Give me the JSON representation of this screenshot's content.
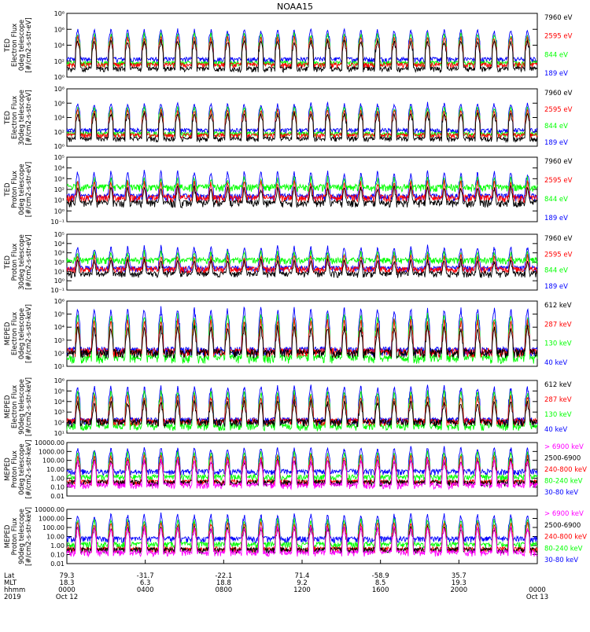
{
  "title": "NOAA15",
  "colors": {
    "black": "#000000",
    "blue": "#0000ff",
    "green": "#00ff00",
    "red": "#ff0000",
    "magenta": "#ff00ff"
  },
  "chart_data": [
    {
      "type": "line",
      "panel": 1,
      "ylabel": [
        "TED",
        "Electron Flux",
        "0deg telescope",
        "[#/cm2-s-str-eV]"
      ],
      "ytick_labels": [
        "10⁰",
        "10²",
        "10⁴",
        "10⁶",
        "10⁸"
      ],
      "ylim": [
        1,
        100000000
      ],
      "yscale": "log",
      "series": [
        {
          "name": "7960 eV",
          "color": "#000000"
        },
        {
          "name": "2595 eV",
          "color": "#ff0000"
        },
        {
          "name": "844 eV",
          "color": "#00ff00"
        },
        {
          "name": "189 eV",
          "color": "#0000ff"
        }
      ],
      "background_levels": {
        "7960 eV": 10,
        "2595 eV": 30,
        "844 eV": 50,
        "189 eV": 150
      },
      "peak_level": 1000000
    },
    {
      "type": "line",
      "panel": 2,
      "ylabel": [
        "TED",
        "Electron Flux",
        "30deg telescope",
        "[#/cm2-s-str-eV]"
      ],
      "ytick_labels": [
        "10⁰",
        "10²",
        "10⁴",
        "10⁶",
        "10⁸"
      ],
      "ylim": [
        1,
        100000000
      ],
      "yscale": "log",
      "series": [
        {
          "name": "7960 eV",
          "color": "#000000"
        },
        {
          "name": "2595 eV",
          "color": "#ff0000"
        },
        {
          "name": "844 eV",
          "color": "#00ff00"
        },
        {
          "name": "189 eV",
          "color": "#0000ff"
        }
      ],
      "background_levels": {
        "7960 eV": 10,
        "2595 eV": 30,
        "844 eV": 50,
        "189 eV": 150
      },
      "peak_level": 1000000
    },
    {
      "type": "line",
      "panel": 3,
      "ylabel": [
        "TED",
        "Proton Flux",
        "0deg telescope",
        "[#/cm2-s-str-eV]"
      ],
      "ytick_labels": [
        "10⁻¹",
        "10⁰",
        "10¹",
        "10²",
        "10³",
        "10⁴",
        "10⁵"
      ],
      "ylim": [
        0.1,
        100000
      ],
      "yscale": "log",
      "series": [
        {
          "name": "7960 eV",
          "color": "#000000"
        },
        {
          "name": "2595 eV",
          "color": "#ff0000"
        },
        {
          "name": "844 eV",
          "color": "#00ff00"
        },
        {
          "name": "189 eV",
          "color": "#0000ff"
        }
      ],
      "background_levels": {
        "7960 eV": 5,
        "2595 eV": 15,
        "844 eV": 150,
        "189 eV": 20
      },
      "peak_level": 5000
    },
    {
      "type": "line",
      "panel": 4,
      "ylabel": [
        "TED",
        "Proton Flux",
        "30deg telescope",
        "[#/cm2-s-str-eV]"
      ],
      "ytick_labels": [
        "10⁻¹",
        "10⁰",
        "10¹",
        "10²",
        "10³",
        "10⁴",
        "10⁵"
      ],
      "ylim": [
        0.1,
        100000
      ],
      "yscale": "log",
      "series": [
        {
          "name": "7960 eV",
          "color": "#000000"
        },
        {
          "name": "2595 eV",
          "color": "#ff0000"
        },
        {
          "name": "844 eV",
          "color": "#00ff00"
        },
        {
          "name": "189 eV",
          "color": "#0000ff"
        }
      ],
      "background_levels": {
        "7960 eV": 5,
        "2595 eV": 15,
        "844 eV": 150,
        "189 eV": 20
      },
      "peak_level": 5000
    },
    {
      "type": "line",
      "panel": 5,
      "ylabel": [
        "MEPED",
        "Electron Flux",
        "0deg telescope",
        "[#/cm2-s-str-keV]"
      ],
      "ytick_labels": [
        "10¹",
        "10²",
        "10³",
        "10⁴",
        "10⁵",
        "10⁶"
      ],
      "ylim": [
        10,
        1000000
      ],
      "yscale": "log",
      "series": [
        {
          "name": "612 keV",
          "color": "#000000"
        },
        {
          "name": "287 keV",
          "color": "#ff0000"
        },
        {
          "name": "130 keV",
          "color": "#00ff00"
        },
        {
          "name": "40 keV",
          "color": "#0000ff"
        }
      ],
      "background_levels": {
        "612 keV": 100,
        "287 keV": 120,
        "130 keV": 40,
        "40 keV": 150
      },
      "peak_level": 300000
    },
    {
      "type": "line",
      "panel": 6,
      "ylabel": [
        "MEPED",
        "Electron Flux",
        "90deg telescope",
        "[#/cm2-s-str-keV]"
      ],
      "ytick_labels": [
        "10¹",
        "10²",
        "10³",
        "10⁴",
        "10⁵",
        "10⁶"
      ],
      "ylim": [
        10,
        1000000
      ],
      "yscale": "log",
      "series": [
        {
          "name": "612 keV",
          "color": "#000000"
        },
        {
          "name": "287 keV",
          "color": "#ff0000"
        },
        {
          "name": "130 keV",
          "color": "#00ff00"
        },
        {
          "name": "40 keV",
          "color": "#0000ff"
        }
      ],
      "background_levels": {
        "612 keV": 100,
        "287 keV": 120,
        "130 keV": 40,
        "40 keV": 150
      },
      "peak_level": 300000
    },
    {
      "type": "line",
      "panel": 7,
      "ylabel": [
        "MEPED",
        "Proton Flux",
        "0deg telescope",
        "[#/cm2-s-str-keV]"
      ],
      "ytick_labels": [
        "0.01",
        "0.10",
        "1.00",
        "10.00",
        "100.00",
        "1000.00",
        "10000.00"
      ],
      "ylim": [
        0.01,
        10000
      ],
      "yscale": "log",
      "series": [
        {
          "name": "> 6900 keV",
          "color": "#ff00ff"
        },
        {
          "name": "2500-6900",
          "color": "#000000"
        },
        {
          "name": "240-800 keV",
          "color": "#ff0000"
        },
        {
          "name": "80-240 keV",
          "color": "#00ff00"
        },
        {
          "name": "30-80 keV",
          "color": "#0000ff"
        }
      ],
      "background_levels": {
        "> 6900 keV": 0.15,
        "2500-6900": 0.3,
        "240-800 keV": 0.35,
        "80-240 keV": 1.2,
        "30-80 keV": 5
      },
      "peak_level": 3000
    },
    {
      "type": "line",
      "panel": 8,
      "ylabel": [
        "MEPED",
        "Proton Flux",
        "90deg telescope",
        "[#/cm2-s-str-keV]"
      ],
      "ytick_labels": [
        "0.01",
        "0.10",
        "1.00",
        "10.00",
        "100.00",
        "1000.00",
        "10000.00"
      ],
      "ylim": [
        0.01,
        10000
      ],
      "yscale": "log",
      "series": [
        {
          "name": "> 6900 keV",
          "color": "#ff00ff"
        },
        {
          "name": "2500-6900",
          "color": "#000000"
        },
        {
          "name": "240-800 keV",
          "color": "#ff0000"
        },
        {
          "name": "80-240 keV",
          "color": "#00ff00"
        },
        {
          "name": "30-80 keV",
          "color": "#0000ff"
        }
      ],
      "background_levels": {
        "> 6900 keV": 0.15,
        "2500-6900": 0.3,
        "240-800 keV": 0.35,
        "80-240 keV": 1.2,
        "30-80 keV": 5
      },
      "peak_level": 3000
    }
  ],
  "x_axis": {
    "xlim_hours": [
      0,
      24
    ],
    "row_labels": [
      "Lat",
      "MLT",
      "hhmm",
      "2019"
    ],
    "ticks": [
      {
        "hour": 0,
        "lat": "79.3",
        "mlt": "18.3",
        "hhmm": "0000",
        "date": "Oct 12"
      },
      {
        "hour": 4,
        "lat": "-31.7",
        "mlt": "6.3",
        "hhmm": "0400",
        "date": ""
      },
      {
        "hour": 8,
        "lat": "-22.1",
        "mlt": "18.8",
        "hhmm": "0800",
        "date": ""
      },
      {
        "hour": 12,
        "lat": "71.4",
        "mlt": "9.2",
        "hhmm": "1200",
        "date": ""
      },
      {
        "hour": 16,
        "lat": "-58.9",
        "mlt": "8.5",
        "hhmm": "1600",
        "date": ""
      },
      {
        "hour": 20,
        "lat": "35.7",
        "mlt": "19.3",
        "hhmm": "2000",
        "date": ""
      },
      {
        "hour": 24,
        "lat": "",
        "mlt": "",
        "hhmm": "0000",
        "date": "Oct 13"
      }
    ]
  }
}
